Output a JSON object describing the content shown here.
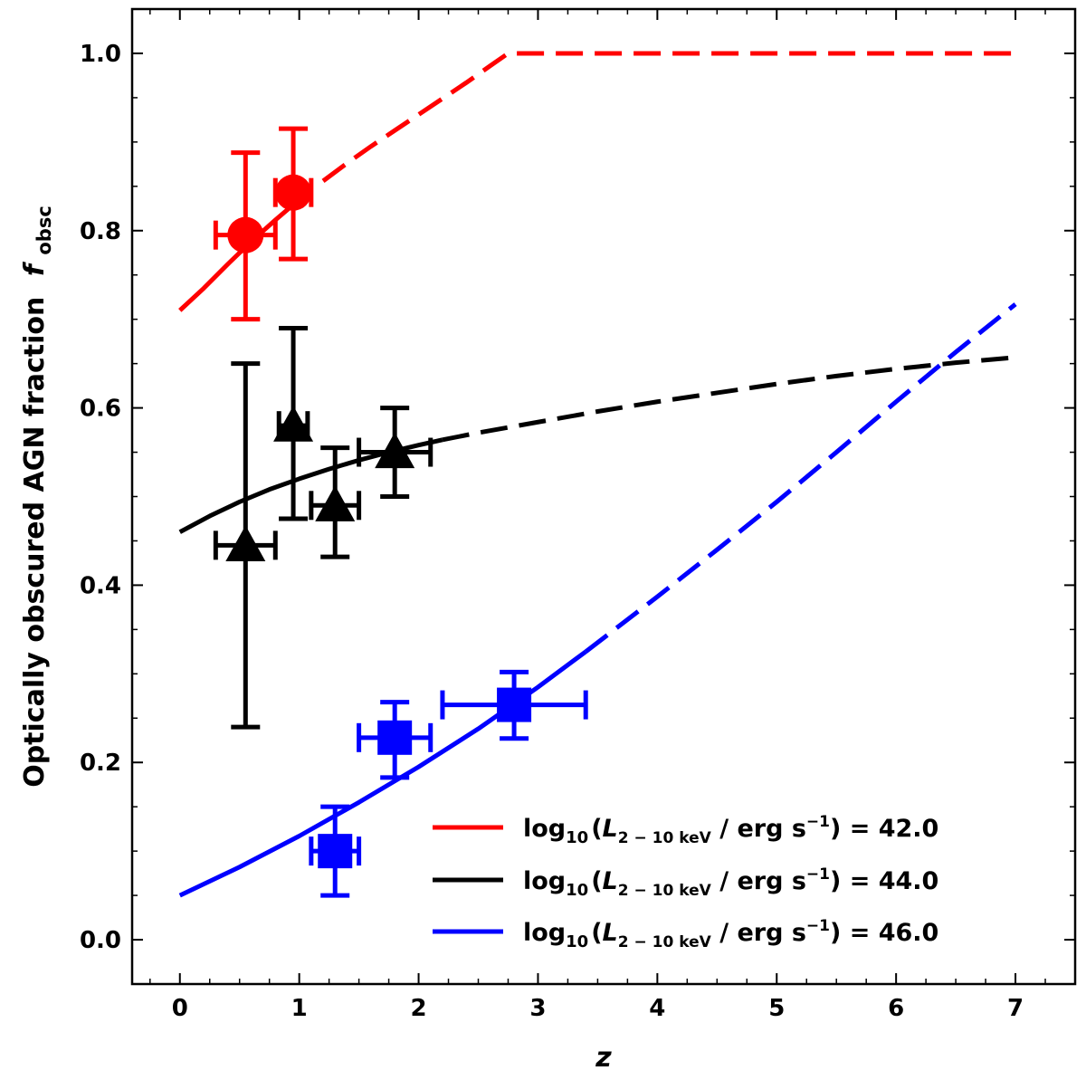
{
  "chart_data": {
    "type": "line",
    "xlabel": "z",
    "ylabel": "Optically obscured AGN fraction",
    "ylabel_symbol": "f",
    "ylabel_symbol_sub": "obsc",
    "xlim": [
      -0.4,
      7.5
    ],
    "ylim": [
      -0.05,
      1.05
    ],
    "x_ticks": [
      0,
      1,
      2,
      3,
      4,
      5,
      6,
      7
    ],
    "y_ticks": [
      0.0,
      0.2,
      0.4,
      0.6,
      0.8,
      1.0
    ],
    "x_tick_labels": [
      "0",
      "1",
      "2",
      "3",
      "4",
      "5",
      "6",
      "7"
    ],
    "y_tick_labels": [
      "0.0",
      "0.2",
      "0.4",
      "0.6",
      "0.8",
      "1.0"
    ],
    "grid": false,
    "legend_position": "bottom-right",
    "series": [
      {
        "color": "#ff0000",
        "legend_parts": [
          "log",
          "10",
          "(",
          "L",
          "2 − 10 keV",
          " / erg s",
          "−1",
          ") = 42.0"
        ],
        "solid_until_x": 1.1,
        "curve": {
          "x": [
            0,
            0.2,
            0.4,
            0.6,
            0.8,
            1.0,
            1.2,
            1.4,
            1.6,
            1.8,
            2.0,
            2.2,
            2.4,
            2.6,
            2.75,
            2.8,
            3.5,
            4.5,
            5.5,
            6.5,
            7.0
          ],
          "y": [
            0.71,
            0.735,
            0.762,
            0.788,
            0.812,
            0.835,
            0.856,
            0.876,
            0.895,
            0.913,
            0.931,
            0.949,
            0.967,
            0.986,
            1.0,
            1.0,
            1.0,
            1.0,
            1.0,
            1.0,
            1.0
          ]
        },
        "marker": "circle",
        "points": [
          {
            "x": 0.55,
            "y": 0.795,
            "xerr": [
              0.25,
              0.25
            ],
            "yerr": [
              0.095,
              0.093
            ]
          },
          {
            "x": 0.95,
            "y": 0.843,
            "xerr": [
              0.15,
              0.15
            ],
            "yerr": [
              0.075,
              0.072
            ]
          }
        ]
      },
      {
        "color": "#000000",
        "legend_parts": [
          "log",
          "10",
          "(",
          "L",
          "2 − 10 keV",
          " / erg s",
          "−1",
          ") = 44.0"
        ],
        "solid_until_x": 2.2,
        "curve": {
          "x": [
            0,
            0.25,
            0.5,
            0.75,
            1.0,
            1.25,
            1.5,
            1.75,
            2.0,
            2.2,
            2.5,
            3.0,
            3.5,
            4.0,
            4.5,
            5.0,
            5.5,
            6.0,
            6.5,
            7.0
          ],
          "y": [
            0.46,
            0.478,
            0.494,
            0.508,
            0.52,
            0.531,
            0.541,
            0.55,
            0.558,
            0.564,
            0.572,
            0.584,
            0.596,
            0.607,
            0.617,
            0.627,
            0.636,
            0.644,
            0.651,
            0.657
          ]
        },
        "marker": "triangle",
        "points": [
          {
            "x": 0.55,
            "y": 0.445,
            "xerr": [
              0.25,
              0.25
            ],
            "yerr": [
              0.205,
              0.205
            ]
          },
          {
            "x": 0.95,
            "y": 0.58,
            "xerr": [
              0.12,
              0.12
            ],
            "yerr": [
              0.105,
              0.11
            ]
          },
          {
            "x": 1.3,
            "y": 0.49,
            "xerr": [
              0.2,
              0.2
            ],
            "yerr": [
              0.058,
              0.065
            ]
          },
          {
            "x": 1.8,
            "y": 0.55,
            "xerr": [
              0.3,
              0.3
            ],
            "yerr": [
              0.05,
              0.05
            ]
          }
        ]
      },
      {
        "color": "#0000ff",
        "legend_parts": [
          "log",
          "10",
          "(",
          "L",
          "2 − 10 keV",
          " / erg s",
          "−1",
          ") = 46.0"
        ],
        "solid_until_x": 3.4,
        "curve": {
          "x": [
            0,
            0.5,
            1.0,
            1.5,
            2.0,
            2.5,
            3.0,
            3.4,
            4.0,
            4.5,
            5.0,
            5.5,
            6.0,
            6.5,
            7.0
          ],
          "y": [
            0.05,
            0.082,
            0.117,
            0.155,
            0.195,
            0.238,
            0.285,
            0.325,
            0.387,
            0.44,
            0.494,
            0.55,
            0.607,
            0.663,
            0.717
          ]
        },
        "marker": "square",
        "points": [
          {
            "x": 1.3,
            "y": 0.1,
            "xerr": [
              0.2,
              0.2
            ],
            "yerr": [
              0.05,
              0.05
            ]
          },
          {
            "x": 1.8,
            "y": 0.228,
            "xerr": [
              0.3,
              0.3
            ],
            "yerr": [
              0.045,
              0.04
            ]
          },
          {
            "x": 2.8,
            "y": 0.265,
            "xerr": [
              0.6,
              0.6
            ],
            "yerr": [
              0.038,
              0.037
            ]
          }
        ]
      }
    ]
  }
}
